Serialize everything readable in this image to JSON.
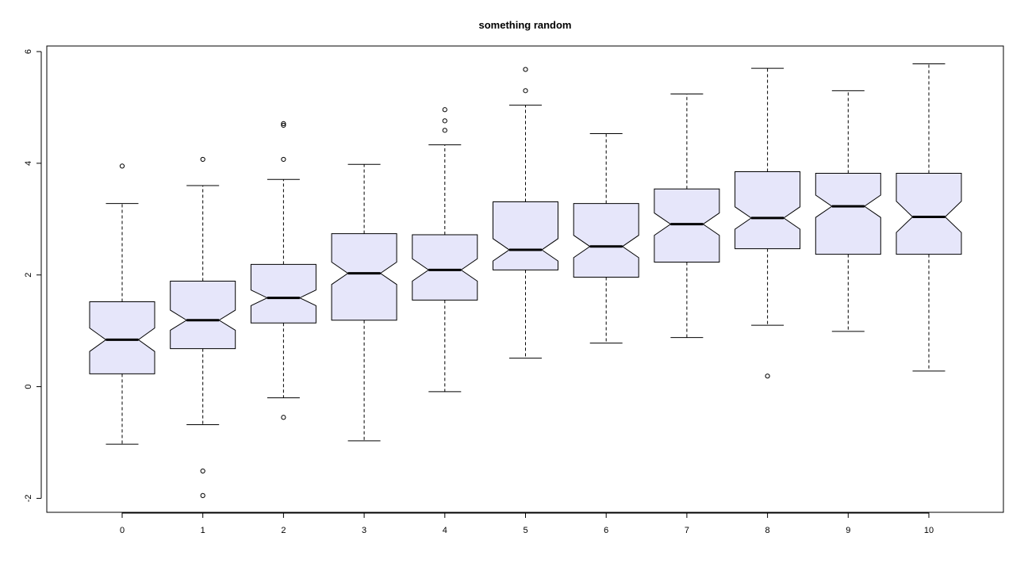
{
  "chart_data": {
    "type": "boxplot",
    "notched": true,
    "title": "something random",
    "xlabel": "",
    "ylabel": "",
    "ylim": [
      -2.25,
      6.1
    ],
    "yticks": [
      -2,
      0,
      2,
      4,
      6
    ],
    "grid": false,
    "colors": {
      "box_fill": "#e6e6fa",
      "stroke": "#000000"
    },
    "categories": [
      "0",
      "1",
      "2",
      "3",
      "4",
      "5",
      "6",
      "7",
      "8",
      "9",
      "10"
    ],
    "boxes": [
      {
        "category": "0",
        "lower_whisker": -1.03,
        "q1": 0.23,
        "median": 0.84,
        "q3": 1.52,
        "upper_whisker": 3.28,
        "notch_low": 0.63,
        "notch_high": 1.05,
        "outliers": [
          3.95
        ]
      },
      {
        "category": "1",
        "lower_whisker": -0.68,
        "q1": 0.68,
        "median": 1.19,
        "q3": 1.89,
        "upper_whisker": 3.6,
        "notch_low": 1.01,
        "notch_high": 1.37,
        "outliers": [
          4.07,
          -1.51,
          -1.95
        ]
      },
      {
        "category": "2",
        "lower_whisker": -0.2,
        "q1": 1.14,
        "median": 1.59,
        "q3": 2.19,
        "upper_whisker": 3.71,
        "notch_low": 1.45,
        "notch_high": 1.73,
        "outliers": [
          4.71,
          4.68,
          4.07,
          -0.55
        ]
      },
      {
        "category": "3",
        "lower_whisker": -0.97,
        "q1": 1.19,
        "median": 2.03,
        "q3": 2.74,
        "upper_whisker": 3.98,
        "notch_low": 1.83,
        "notch_high": 2.23,
        "outliers": []
      },
      {
        "category": "4",
        "lower_whisker": -0.09,
        "q1": 1.55,
        "median": 2.09,
        "q3": 2.72,
        "upper_whisker": 4.33,
        "notch_low": 1.89,
        "notch_high": 2.29,
        "outliers": [
          4.96,
          4.76,
          4.59
        ]
      },
      {
        "category": "5",
        "lower_whisker": 0.51,
        "q1": 2.09,
        "median": 2.45,
        "q3": 3.31,
        "upper_whisker": 5.04,
        "notch_low": 2.25,
        "notch_high": 2.65,
        "outliers": [
          5.68,
          5.3
        ]
      },
      {
        "category": "6",
        "lower_whisker": 0.78,
        "q1": 1.96,
        "median": 2.51,
        "q3": 3.28,
        "upper_whisker": 4.53,
        "notch_low": 2.31,
        "notch_high": 2.71,
        "outliers": []
      },
      {
        "category": "7",
        "lower_whisker": 0.88,
        "q1": 2.23,
        "median": 2.91,
        "q3": 3.54,
        "upper_whisker": 5.24,
        "notch_low": 2.71,
        "notch_high": 3.11,
        "outliers": []
      },
      {
        "category": "8",
        "lower_whisker": 1.1,
        "q1": 2.47,
        "median": 3.02,
        "q3": 3.85,
        "upper_whisker": 5.7,
        "notch_low": 2.82,
        "notch_high": 3.22,
        "outliers": [
          0.19
        ]
      },
      {
        "category": "9",
        "lower_whisker": 0.99,
        "q1": 2.37,
        "median": 3.23,
        "q3": 3.82,
        "upper_whisker": 5.3,
        "notch_low": 3.03,
        "notch_high": 3.43,
        "outliers": []
      },
      {
        "category": "10",
        "lower_whisker": 0.28,
        "q1": 2.37,
        "median": 3.04,
        "q3": 3.82,
        "upper_whisker": 5.78,
        "notch_low": 2.76,
        "notch_high": 3.32,
        "outliers": []
      }
    ]
  }
}
